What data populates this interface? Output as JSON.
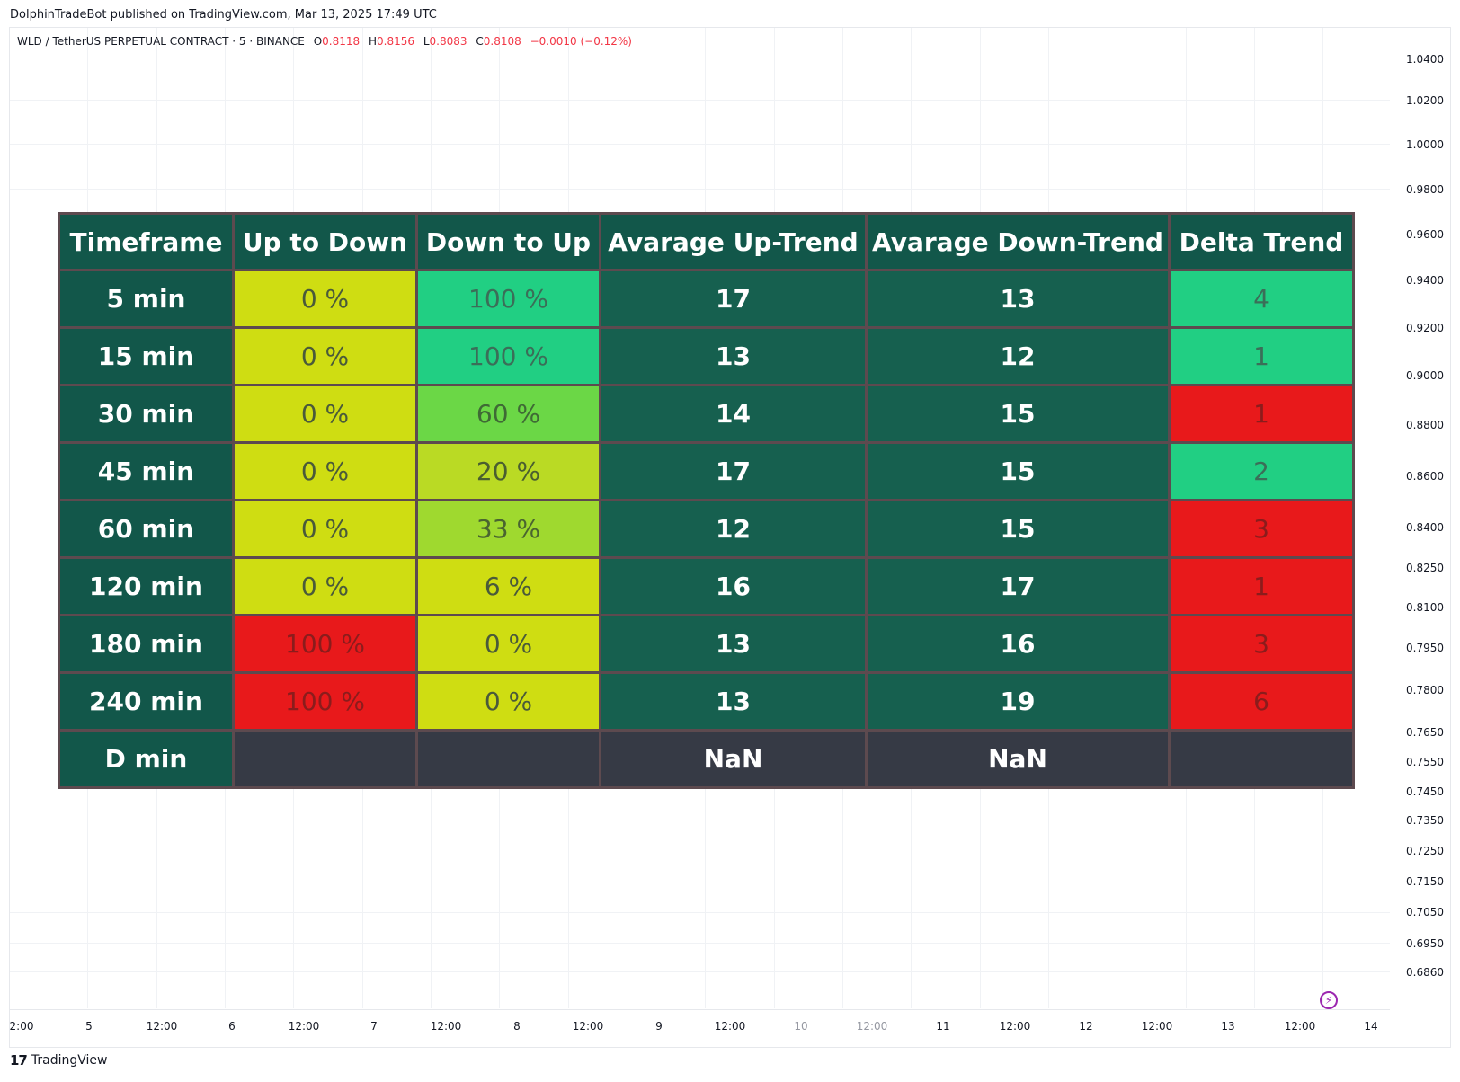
{
  "header": {
    "published": "DolphinTradeBot published on TradingView.com, Mar 13, 2025 17:49 UTC"
  },
  "symbol": {
    "name": "WLD / TetherUS PERPETUAL CONTRACT · 5 · BINANCE",
    "o_key": "O",
    "o_val": "0.8118",
    "h_key": "H",
    "h_val": "0.8156",
    "l_key": "L",
    "l_val": "0.8083",
    "c_key": "C",
    "c_val": "0.8108",
    "change": "−0.0010 (−0.12%)"
  },
  "price_axis": [
    "1.0400",
    "1.0200",
    "1.0000",
    "0.9800",
    "0.9600",
    "0.9400",
    "0.9200",
    "0.9000",
    "0.8800",
    "0.8600",
    "0.8400",
    "0.8250",
    "0.8100",
    "0.7950",
    "0.7800",
    "0.7650",
    "0.7550",
    "0.7450",
    "0.7350",
    "0.7250",
    "0.7150",
    "0.7050",
    "0.6950",
    "0.6860"
  ],
  "time_axis": [
    "2:00",
    "5",
    "12:00",
    "6",
    "12:00",
    "7",
    "12:00",
    "8",
    "12:00",
    "9",
    "12:00",
    "10",
    "12:00",
    "11",
    "12:00",
    "12",
    "12:00",
    "13",
    "12:00",
    "14"
  ],
  "table": {
    "headers": [
      "Timeframe",
      "Up to Down",
      "Down to Up",
      "Avarage Up-Trend",
      "Avarage Down-Trend",
      "Delta Trend"
    ],
    "rows": [
      {
        "tf": "5 min",
        "up_down": "0  %",
        "down_up": "100  %",
        "avg_up": "17",
        "avg_down": "13",
        "delta": "4"
      },
      {
        "tf": "15 min",
        "up_down": "0  %",
        "down_up": "100  %",
        "avg_up": "13",
        "avg_down": "12",
        "delta": "1"
      },
      {
        "tf": "30 min",
        "up_down": "0  %",
        "down_up": "60  %",
        "avg_up": "14",
        "avg_down": "15",
        "delta": "1"
      },
      {
        "tf": "45 min",
        "up_down": "0  %",
        "down_up": "20  %",
        "avg_up": "17",
        "avg_down": "15",
        "delta": "2"
      },
      {
        "tf": "60 min",
        "up_down": "0  %",
        "down_up": "33  %",
        "avg_up": "12",
        "avg_down": "15",
        "delta": "3"
      },
      {
        "tf": "120 min",
        "up_down": "0  %",
        "down_up": "6  %",
        "avg_up": "16",
        "avg_down": "17",
        "delta": "1"
      },
      {
        "tf": "180 min",
        "up_down": "100  %",
        "down_up": "0  %",
        "avg_up": "13",
        "avg_down": "16",
        "delta": "3"
      },
      {
        "tf": "240 min",
        "up_down": "100  %",
        "down_up": "0  %",
        "avg_up": "13",
        "avg_down": "19",
        "delta": "6"
      },
      {
        "tf": "D min",
        "up_down": "",
        "down_up": "",
        "avg_up": "NaN",
        "avg_down": "NaN",
        "delta": ""
      }
    ]
  },
  "branding": {
    "logo_text": "TradingView"
  },
  "colors": {
    "header_bg": "#12574a",
    "green": "#21cf83",
    "yellow": "#cfdd12",
    "red": "#e8191b",
    "empty": "#363a45"
  }
}
